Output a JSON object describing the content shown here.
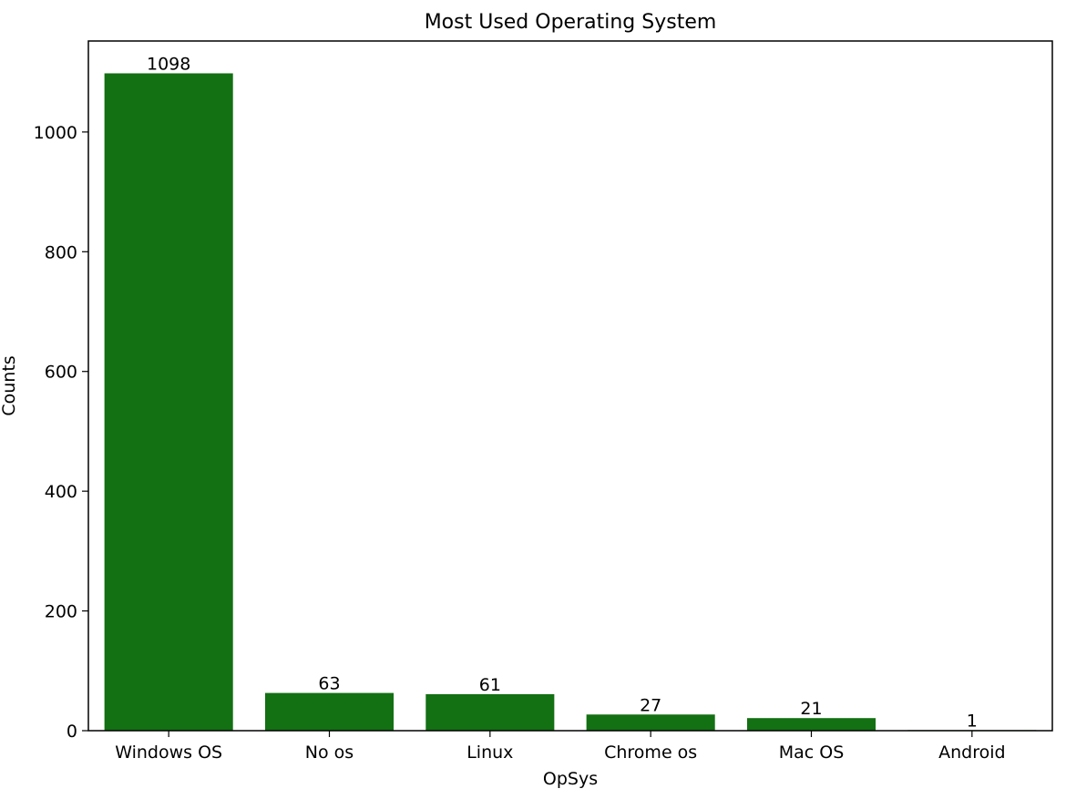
{
  "chart_data": {
    "type": "bar",
    "title": "Most Used Operating System",
    "xlabel": "OpSys",
    "ylabel": "Counts",
    "categories": [
      "Windows OS",
      "No os",
      "Linux",
      "Chrome os",
      "Mac OS",
      "Android"
    ],
    "values": [
      1098,
      63,
      61,
      27,
      21,
      1
    ],
    "data_labels": [
      "1098",
      "63",
      "61",
      "27",
      "21",
      "1"
    ],
    "ylim": [
      0,
      1152
    ],
    "yticks": [
      0,
      200,
      400,
      600,
      800,
      1000
    ],
    "grid": false,
    "legend": "none",
    "bar_color": "#137013"
  }
}
